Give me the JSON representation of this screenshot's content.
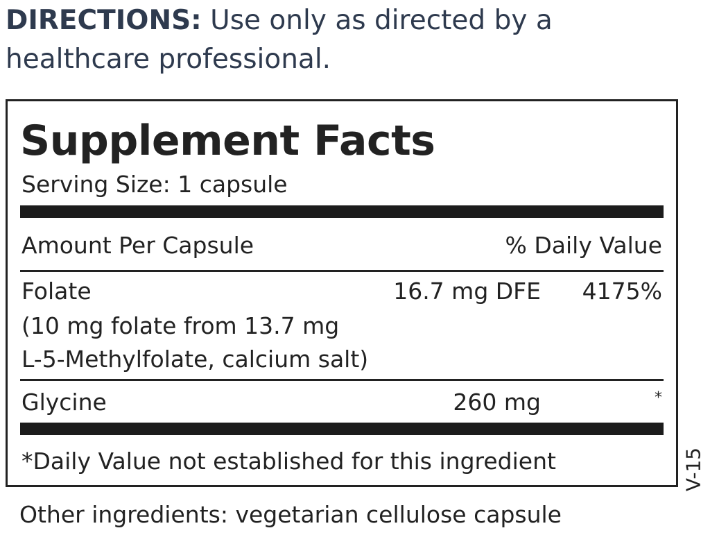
{
  "directions": {
    "label": "DIRECTIONS:",
    "text": " Use only as directed by a healthcare professional."
  },
  "facts": {
    "title": "Supplement Facts",
    "serving_size": "Serving Size: 1 capsule",
    "header_left": "Amount Per Capsule",
    "header_right": "% Daily Value",
    "ingredients": [
      {
        "name": "Folate",
        "amount": "16.7 mg DFE",
        "dv": "4175%",
        "detail_1": "(10 mg folate from 13.7 mg",
        "detail_2": "L-5-Methylfolate, calcium salt)"
      },
      {
        "name": "Glycine",
        "amount": "260 mg",
        "dv": "*"
      }
    ],
    "footnote": "*Daily Value not established for this ingredient"
  },
  "code": "V-15",
  "other_ingredients": "Other ingredients: vegetarian cellulose capsule"
}
